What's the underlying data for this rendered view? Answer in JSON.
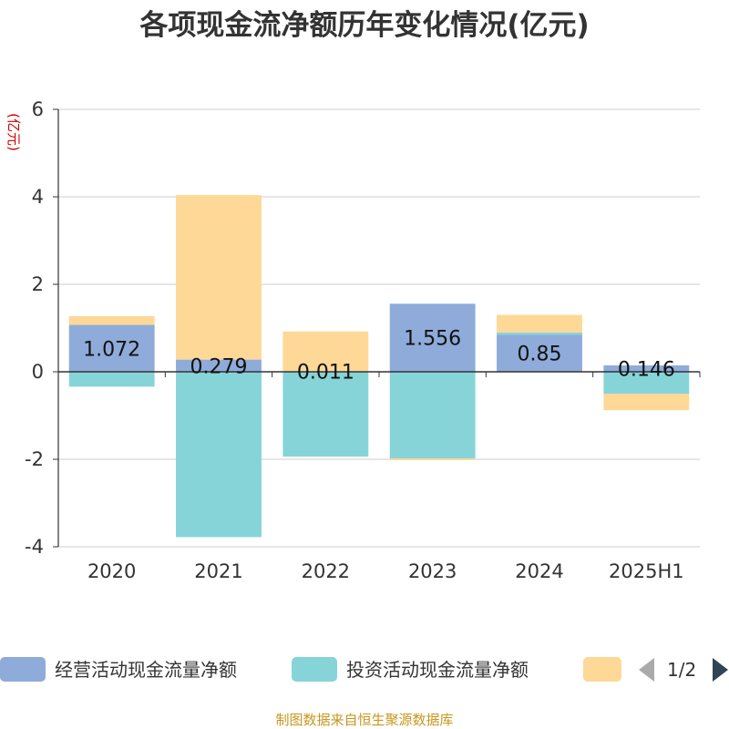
{
  "chart_data": {
    "type": "bar",
    "stacked": true,
    "title": "各项现金流净额历年变化情况(亿元)",
    "ylabel": "(亿元)",
    "ylim": [
      -4,
      6
    ],
    "yticks": [
      6,
      4,
      2,
      0,
      -2,
      -4
    ],
    "categories": [
      "2020",
      "2021",
      "2022",
      "2023",
      "2024",
      "2025H1"
    ],
    "grid": true,
    "legend_position": "bottom",
    "series": [
      {
        "name": "经营活动现金流量净额",
        "color": "#8eabd9",
        "values": [
          1.072,
          0.279,
          0.011,
          1.556,
          0.85,
          0.146
        ],
        "labels": [
          "1.072",
          "0.279",
          "0.011",
          "1.556",
          "0.85",
          "0.146"
        ]
      },
      {
        "name": "投资活动现金流量净额",
        "color": "#86d4d8",
        "values": [
          -0.34,
          -3.78,
          -1.94,
          -1.98,
          0.05,
          -0.5
        ]
      },
      {
        "name": "",
        "color": "#fed897",
        "values": [
          0.2,
          3.76,
          0.91,
          -0.04,
          0.4,
          -0.38
        ]
      }
    ]
  },
  "legend": {
    "items": [
      "经营活动现金流量净额",
      "投资活动现金流量净额",
      ""
    ],
    "page": "1/2"
  },
  "source": "制图数据来自恒生聚源数据库"
}
